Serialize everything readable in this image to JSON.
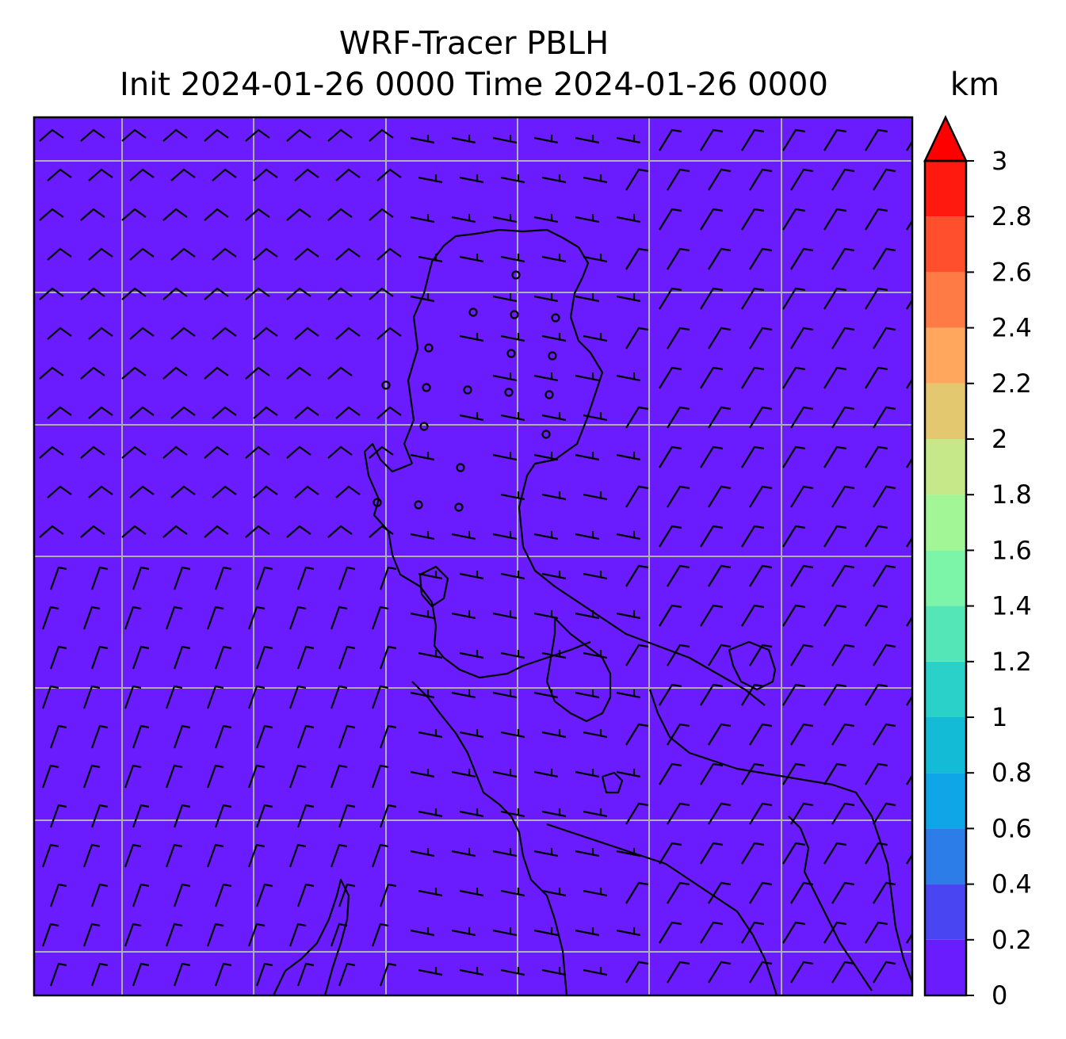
{
  "title": {
    "line1": "WRF-Tracer PBLH",
    "line2": "Init 2024-01-26 0000 Time 2024-01-26 0000"
  },
  "colorbar": {
    "unit": "km",
    "tick_labels": [
      "0",
      "0.2",
      "0.4",
      "0.6",
      "0.8",
      "1",
      "1.2",
      "1.4",
      "1.6",
      "1.8",
      "2",
      "2.2",
      "2.4",
      "2.6",
      "2.8",
      "3"
    ],
    "levels": [
      0,
      0.2,
      0.4,
      0.6,
      0.8,
      1.0,
      1.2,
      1.4,
      1.6,
      1.8,
      2.0,
      2.2,
      2.4,
      2.6,
      2.8,
      3.0
    ],
    "colors": [
      "#6a1cff",
      "#4a45f2",
      "#2d7de8",
      "#0ea6e6",
      "#13bbd6",
      "#2ad1c9",
      "#55e6b7",
      "#7cf5a8",
      "#a2f695",
      "#c7e889",
      "#e4c870",
      "#ffa75d",
      "#ff7b46",
      "#ff4f2c",
      "#ff1a10"
    ],
    "extend_color": "#ff0000",
    "extend": "max"
  },
  "map": {
    "field_value_km": 0.1,
    "field_color": "#6a1cff",
    "gridline_color": "#b0b0b0",
    "coastline_color": "#000000",
    "wind_barbs": "black, dominant flow northeasterly over western basin, calm circles over the northern landmass"
  }
}
